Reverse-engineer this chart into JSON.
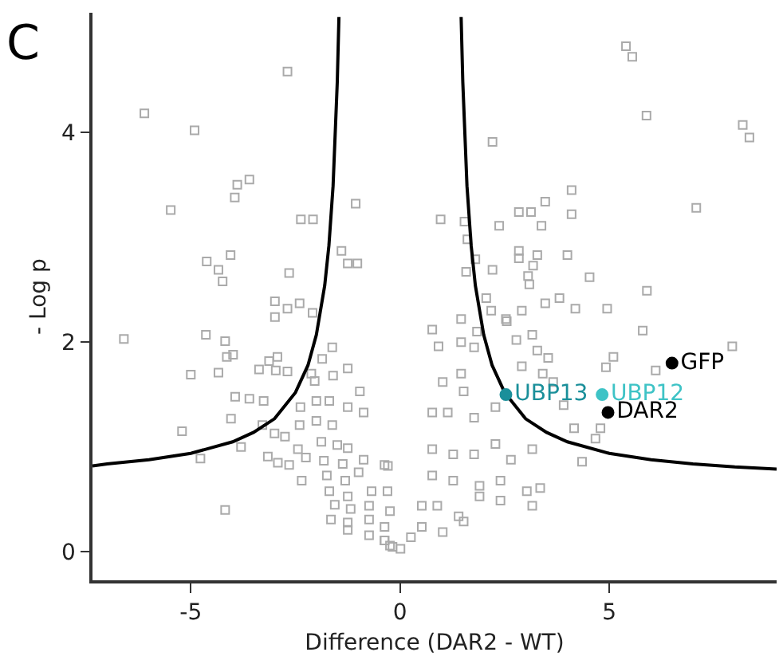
{
  "chart_data": {
    "type": "scatter",
    "xlabel": "Difference (DAR2 - WT)",
    "ylabel": "- Log p",
    "xlim": [
      -7.35,
      9
    ],
    "ylim": [
      -0.27,
      5.14
    ],
    "xticks": [
      -5,
      0,
      5
    ],
    "yticks": [
      0,
      2,
      4
    ],
    "grid": false,
    "legend": false,
    "annotations": [
      "C"
    ],
    "series": [
      {
        "marker": "square",
        "color": "#aaaaaa",
        "x": [
          -2.69,
          -6.11,
          -4.91,
          -3.6,
          -3.89,
          -3.95,
          -5.48,
          -1.06,
          -2.37,
          -2.08,
          -1.4,
          -1.25,
          -1.02,
          -4.05,
          -4.62,
          -4.34,
          -4.24,
          -2.65,
          -2.99,
          -2.69,
          -2.4,
          -2.99,
          -2.09,
          5.4,
          5.55,
          5.89,
          8.19,
          8.35,
          2.21,
          7.08,
          4.1,
          3.47,
          2.84,
          3.13,
          4.1,
          0.97,
          1.54,
          2.37,
          3.38,
          1.61,
          2.84,
          2.84,
          3.28,
          4.0,
          1.8,
          3.18,
          1.58,
          2.21,
          4.53,
          3.06,
          3.09,
          5.9,
          2.06,
          3.47,
          3.81,
          2.18,
          2.91,
          4.19,
          4.95,
          1.46,
          2.55,
          -6.6,
          -4.64,
          -4.18,
          -4.14,
          -3.99,
          -5.0,
          -4.34,
          -3.37,
          -2.97,
          -3.13,
          -2.93,
          -2.69,
          -2.12,
          -2.04,
          -1.86,
          -1.62,
          -1.6,
          -1.25,
          -3.94,
          -3.6,
          -3.26,
          -4.04,
          -5.21,
          -4.77,
          -3.8,
          -3.29,
          -3.0,
          -2.75,
          -3.16,
          -2.92,
          -2.65,
          -2.35,
          -2.44,
          -2.25,
          -2.38,
          -2.0,
          -1.69,
          -2.4,
          -2.0,
          -1.62,
          -1.88,
          -1.5,
          -1.25,
          -1.82,
          -1.37,
          -0.87,
          -1.75,
          -1.31,
          -0.99,
          -1.69,
          -1.25,
          -0.68,
          -1.56,
          -1.18,
          -0.74,
          -0.24,
          -1.65,
          -1.25,
          -0.74,
          -0.37,
          -1.25,
          -0.74,
          -0.37,
          -0.18,
          -4.18,
          -0.29,
          -0.96,
          -1.25,
          -0.87,
          0.77,
          1.84,
          2.53,
          0.92,
          1.46,
          1.77,
          1.02,
          1.46,
          1.52,
          2.78,
          3.16,
          3.28,
          3.54,
          2.91,
          3.41,
          3.66,
          5.8,
          7.94,
          5.1,
          4.92,
          6.11,
          3.91,
          4.16,
          4.79,
          4.35,
          4.67,
          0.77,
          1.14,
          1.77,
          2.28,
          0.77,
          1.27,
          1.77,
          2.28,
          2.65,
          3.16,
          0.77,
          1.27,
          1.9,
          2.4,
          3.03,
          3.35,
          3.16,
          0.52,
          0.89,
          1.4,
          1.9,
          2.4,
          0.52,
          1.02,
          1.52,
          0.26,
          0.01,
          -0.24,
          -0.37,
          -0.37,
          -0.3
        ],
        "values": [
          4.58,
          4.18,
          4.02,
          3.55,
          3.5,
          3.38,
          3.26,
          3.32,
          3.17,
          3.17,
          2.87,
          2.75,
          2.75,
          2.83,
          2.77,
          2.69,
          2.58,
          2.66,
          2.39,
          2.32,
          2.37,
          2.24,
          2.28,
          4.82,
          4.72,
          4.16,
          4.07,
          3.95,
          3.91,
          3.28,
          3.45,
          3.34,
          3.24,
          3.24,
          3.22,
          3.17,
          3.15,
          3.11,
          3.11,
          2.98,
          2.87,
          2.8,
          2.83,
          2.83,
          2.79,
          2.73,
          2.67,
          2.69,
          2.62,
          2.63,
          2.55,
          2.49,
          2.42,
          2.37,
          2.42,
          2.3,
          2.3,
          2.32,
          2.32,
          2.22,
          2.2,
          2.03,
          2.07,
          2.01,
          1.86,
          1.88,
          1.69,
          1.71,
          1.74,
          1.73,
          1.82,
          1.86,
          1.72,
          1.7,
          1.63,
          1.84,
          1.95,
          1.68,
          1.75,
          1.48,
          1.46,
          1.44,
          1.27,
          1.15,
          0.89,
          1.0,
          1.21,
          1.13,
          1.1,
          0.91,
          0.85,
          0.83,
          0.68,
          0.98,
          0.9,
          1.38,
          1.44,
          1.44,
          1.21,
          1.25,
          1.21,
          1.05,
          1.02,
          0.99,
          0.87,
          0.84,
          0.88,
          0.73,
          0.68,
          0.76,
          0.58,
          0.53,
          0.58,
          0.45,
          0.41,
          0.44,
          0.39,
          0.31,
          0.28,
          0.31,
          0.24,
          0.21,
          0.16,
          0.11,
          0.05,
          0.4,
          0.82,
          1.53,
          1.38,
          1.33,
          2.12,
          2.1,
          2.22,
          1.96,
          2.0,
          1.95,
          1.62,
          1.7,
          1.53,
          2.02,
          2.07,
          1.92,
          1.85,
          1.77,
          1.7,
          1.62,
          2.11,
          1.96,
          1.86,
          1.76,
          1.73,
          1.4,
          1.18,
          1.18,
          0.86,
          1.08,
          1.33,
          1.33,
          1.28,
          1.38,
          0.98,
          0.93,
          0.93,
          1.03,
          0.88,
          0.98,
          0.73,
          0.68,
          0.63,
          0.68,
          0.58,
          0.61,
          0.44,
          0.44,
          0.44,
          0.34,
          0.53,
          0.49,
          0.24,
          0.19,
          0.29,
          0.14,
          0.03,
          0.06,
          0.11,
          0.83,
          0.58
        ]
      },
      {
        "type": "line",
        "marker": "none",
        "line_style": "solid",
        "color": "#000000",
        "x": [
          -7.35,
          -7,
          -6,
          -5,
          -4,
          -3.5,
          -3,
          -2.5,
          -2.2,
          -2,
          -1.8,
          -1.7,
          -1.6,
          -1.5,
          -1.46,
          null,
          1.46,
          1.5,
          1.6,
          1.7,
          1.8,
          2,
          2.2,
          2.5,
          3,
          3.5,
          4,
          5,
          6,
          7,
          8,
          9
        ],
        "values": [
          0.82,
          0.84,
          0.88,
          0.94,
          1.05,
          1.14,
          1.27,
          1.52,
          1.78,
          2.07,
          2.54,
          2.92,
          3.49,
          4.48,
          5.1,
          null,
          5.1,
          4.48,
          3.49,
          2.92,
          2.54,
          2.07,
          1.78,
          1.52,
          1.27,
          1.14,
          1.05,
          0.94,
          0.88,
          0.84,
          0.81,
          0.79
        ]
      },
      {
        "type": "scatter",
        "marker": "circle",
        "name": "GFP",
        "color": "#000000",
        "x": [
          6.5
        ],
        "values": [
          1.8
        ]
      },
      {
        "type": "scatter",
        "marker": "circle",
        "name": "UBP13",
        "color": "#1a8f9a",
        "x": [
          2.53
        ],
        "values": [
          1.5
        ]
      },
      {
        "type": "scatter",
        "marker": "circle",
        "name": "UBP12",
        "color": "#3ec3c6",
        "x": [
          4.83
        ],
        "values": [
          1.5
        ]
      },
      {
        "type": "scatter",
        "marker": "circle",
        "name": "DAR2",
        "color": "#000000",
        "x": [
          4.97
        ],
        "values": [
          1.33
        ]
      }
    ]
  }
}
